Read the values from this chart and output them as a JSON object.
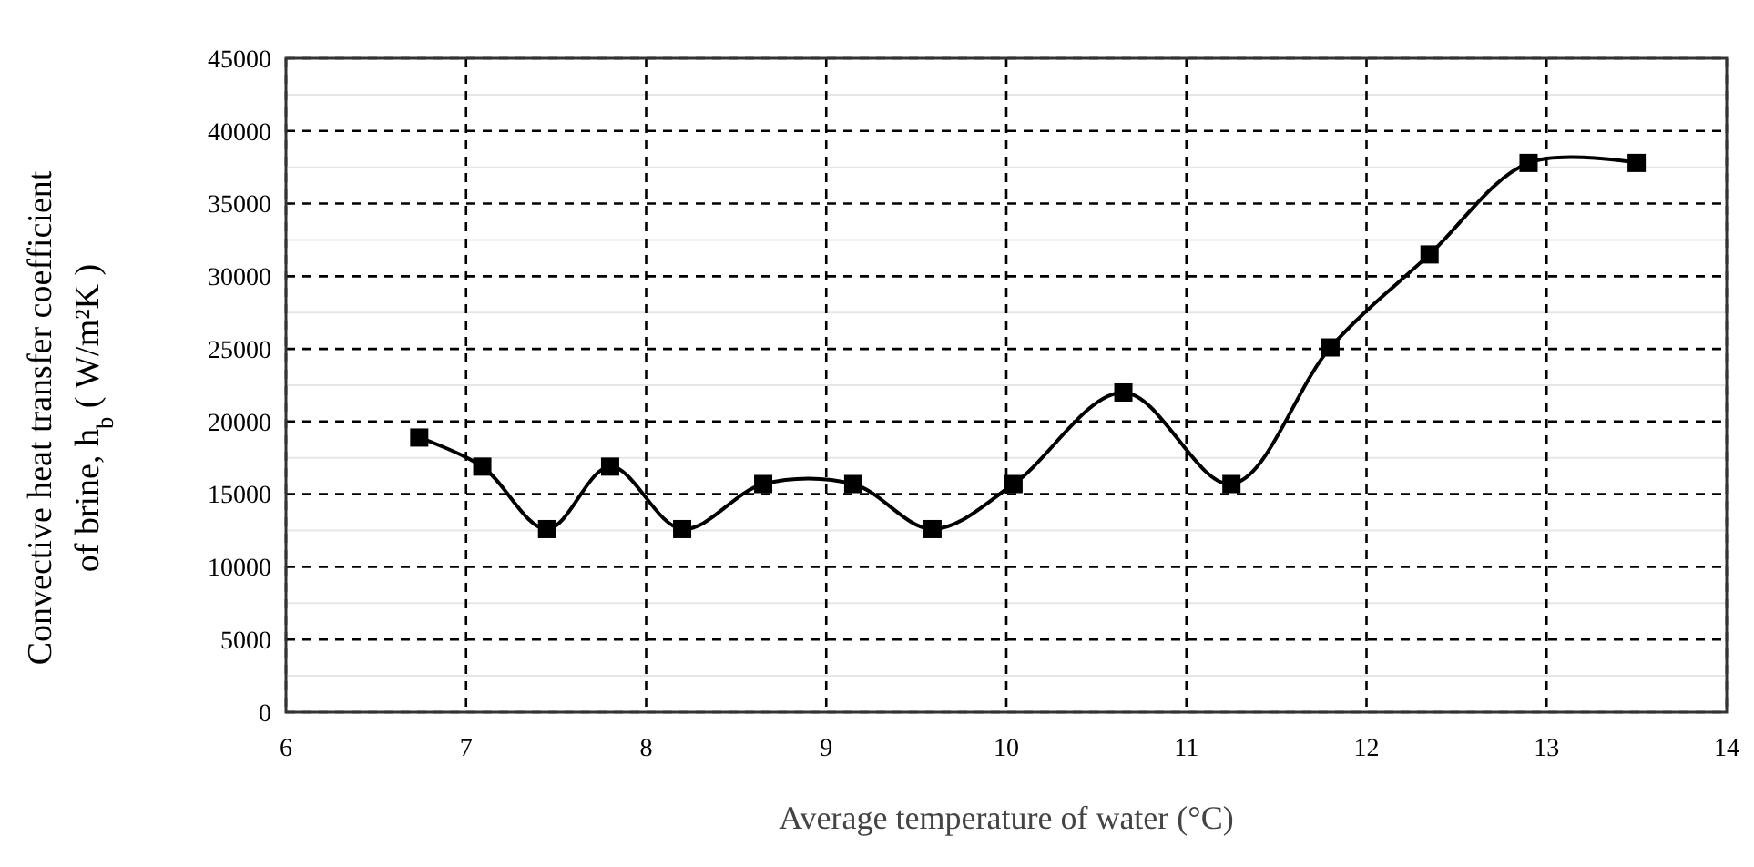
{
  "chart_data": {
    "type": "line",
    "xlabel": "Average temperature of water (°C)",
    "ylabel": "Convective heat transfer coefficient\nof brine, h$_{b}$ ( W/m²K )",
    "x": [
      6.74,
      7.09,
      7.45,
      7.8,
      8.2,
      8.65,
      9.15,
      9.59,
      10.04,
      10.65,
      11.25,
      11.8,
      12.35,
      12.9,
      13.5
    ],
    "series": [
      {
        "color": "#000000",
        "values": [
          18900,
          16900,
          12600,
          16900,
          12600,
          15700,
          15700,
          12600,
          15700,
          22000,
          15700,
          25100,
          31500,
          37800,
          37800
        ]
      }
    ],
    "xlim": [
      6,
      14
    ],
    "xticks": [
      6,
      7,
      8,
      9,
      10,
      11,
      12,
      13,
      14
    ],
    "ylim": [
      0,
      45000
    ],
    "yticks": [
      0,
      {
        "value": 2500,
        "label": null
      },
      5000,
      {
        "value": 7500,
        "label": null
      },
      10000,
      {
        "value": 12500,
        "label": null
      },
      15000,
      {
        "value": 17500,
        "label": null
      },
      20000,
      {
        "value": 22500,
        "label": null
      },
      25000,
      {
        "value": 27500,
        "label": null
      },
      30000,
      {
        "value": 32500,
        "label": null
      },
      35000,
      {
        "value": 37500,
        "label": null
      },
      40000,
      {
        "value": 42500,
        "label": null
      },
      45000
    ],
    "grid": true,
    "marker": "square",
    "line_style": "solid"
  }
}
